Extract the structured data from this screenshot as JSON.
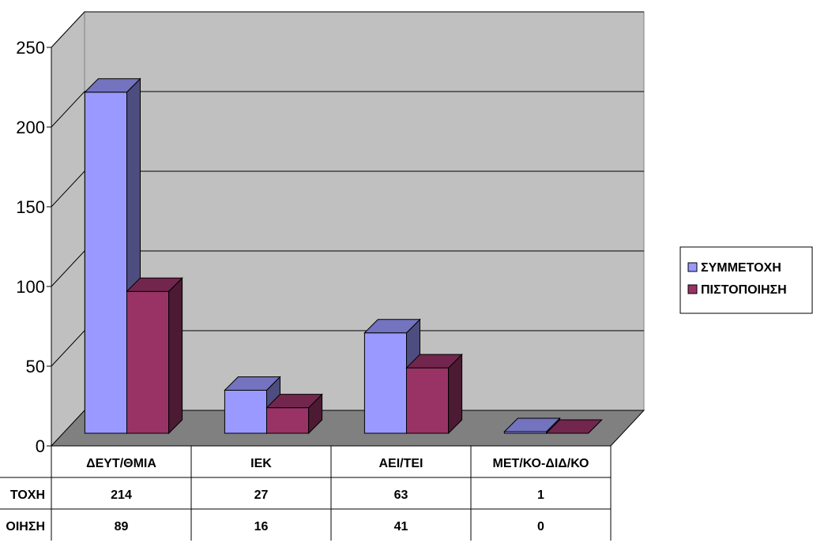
{
  "chart_data": {
    "type": "bar",
    "categories": [
      "ΔΕΥΤ/ΘΜΙΑ",
      "ΙΕΚ",
      "ΑΕΙ/ΤΕΙ",
      "ΜΕΤ/ΚΟ-ΔΙΔ/ΚΟ"
    ],
    "series": [
      {
        "name": "ΣΥΜΜΕΤΟΧΗ",
        "values": [
          214,
          27,
          63,
          1
        ],
        "color": "#9999ff"
      },
      {
        "name": "ΠΙΣΤΟΠΟΙΗΣΗ",
        "values": [
          89,
          16,
          41,
          0
        ],
        "color": "#993366"
      }
    ],
    "ylim": [
      0,
      250
    ],
    "yticks": [
      0,
      50,
      100,
      150,
      200,
      250
    ],
    "grid": true,
    "legend": "right",
    "data_table": true,
    "style": "3d-clustered-column",
    "table_row_labels": [
      "ΤΟΧΗ",
      "ΟΙΗΣΗ"
    ]
  }
}
